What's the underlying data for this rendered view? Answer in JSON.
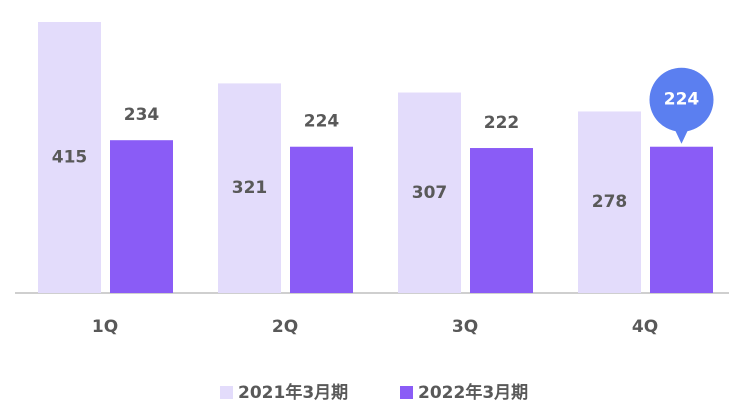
{
  "chart_data": {
    "type": "bar",
    "categories": [
      "1Q",
      "2Q",
      "3Q",
      "4Q"
    ],
    "series": [
      {
        "name": "2021年3月期",
        "color": "#e3dcfb",
        "values": [
          415,
          321,
          307,
          278
        ]
      },
      {
        "name": "2022年3月期",
        "color": "#8a5cf6",
        "values": [
          234,
          224,
          222,
          224
        ]
      }
    ],
    "highlight": {
      "series": 1,
      "index": 3,
      "color": "#5b7ff0"
    }
  }
}
